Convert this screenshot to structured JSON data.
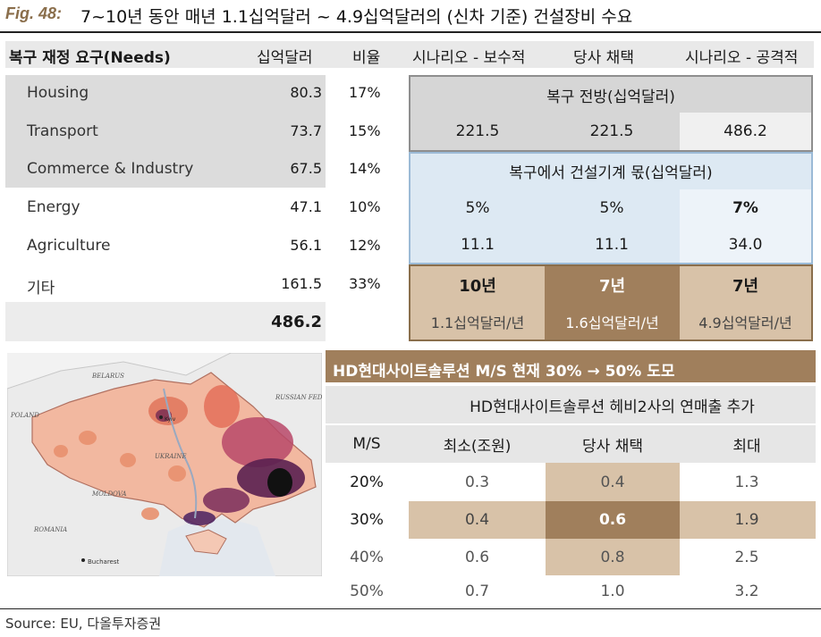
{
  "figure": {
    "label": "Fig. 48:",
    "title": "7~10년 동안 매년 1.1십억달러 ~ 4.9십억달러의 (신차 기준) 건설장비 수요"
  },
  "needs_table": {
    "headers": [
      "복구 재정 요구(Needs)",
      "십억달러",
      "비율",
      "시나리오 - 보수적",
      "당사 채택",
      "시나리오 - 공격적"
    ],
    "rows": [
      {
        "name": "Housing",
        "value": "80.3",
        "ratio": "17%"
      },
      {
        "name": "Transport",
        "value": "73.7",
        "ratio": "15%"
      },
      {
        "name": "Commerce & Industry",
        "value": "67.5",
        "ratio": "14%"
      },
      {
        "name": "Energy",
        "value": "47.1",
        "ratio": "10%"
      },
      {
        "name": "Agriculture",
        "value": "56.1",
        "ratio": "12%"
      },
      {
        "name": "기타",
        "value": "161.5",
        "ratio": "33%"
      }
    ],
    "total": "486.2"
  },
  "scenario": {
    "recovery_header": "복구 전방(십억달러)",
    "recovery_values": [
      "221.5",
      "221.5",
      "486.2"
    ],
    "equipment_header": "복구에서 건설기계 몫(십억달러)",
    "share_values": [
      "5%",
      "5%",
      "7%"
    ],
    "amount_values": [
      "11.1",
      "11.1",
      "34.0"
    ],
    "periods": [
      "10년",
      "7년",
      "7년"
    ],
    "annual": [
      "1.1십억달러/년",
      "1.6십억달러/년",
      "4.9십억달러/년"
    ]
  },
  "hd_table": {
    "banner": "HD현대사이트솔루션 M/S 현재 30% → 50% 도모",
    "subheader": "HD현대사이트솔루션 헤비2사의 연매출 추가",
    "headers": [
      "M/S",
      "최소(조원)",
      "당사 채택",
      "최대"
    ],
    "rows": [
      {
        "ms": "20%",
        "min": "0.3",
        "adopt": "0.4",
        "max": "1.3"
      },
      {
        "ms": "30%",
        "min": "0.4",
        "adopt": "0.6",
        "max": "1.9"
      },
      {
        "ms": "40%",
        "min": "0.6",
        "adopt": "0.8",
        "max": "2.5"
      },
      {
        "ms": "50%",
        "min": "0.7",
        "adopt": "1.0",
        "max": "3.2"
      }
    ]
  },
  "map": {
    "labels": [
      "BELARUS",
      "RUSSIAN FEDERATION",
      "POLAND",
      "UKRAINE",
      "MOLDOVA",
      "ROMANIA",
      "Bucharest",
      "Kyiv"
    ]
  },
  "source": "Source: EU, 다올투자증권",
  "colors": {
    "brand": "#8a6e4b",
    "brown_dark": "#a07f5c",
    "brown_light": "#d8c2a8",
    "blue_light": "#dde9f3",
    "blue_border": "#9bbad6",
    "gray_fill": "#dcdcdc"
  }
}
